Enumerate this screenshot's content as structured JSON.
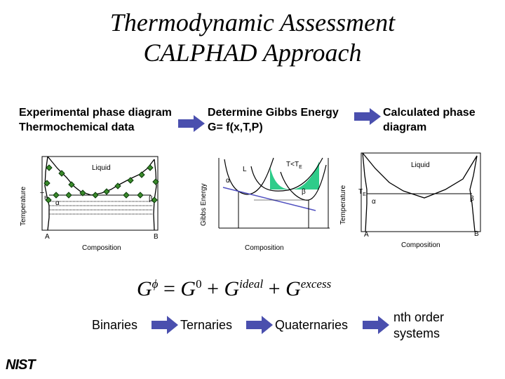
{
  "title_line1": "Thermodynamic Assessment",
  "title_line2": "CALPHAD Approach",
  "headers": {
    "experimental_line1": "Experimental phase diagram",
    "experimental_line2": "Thermochemical data",
    "gibbs_line1": "Determine Gibbs Energy",
    "gibbs_line2": "G= f(x,T,P)",
    "calculated_line1": "Calculated phase",
    "calculated_line2": "diagram"
  },
  "diagram1": {
    "y_label": "Temperature",
    "x_label": "Composition",
    "liquid": "Liquid",
    "te": "T",
    "te_sub": "E",
    "alpha": "α",
    "beta": "β",
    "a": "A",
    "b": "B"
  },
  "diagram2": {
    "y_label": "Gibbs Energy",
    "x_label": "Composition",
    "l": "L",
    "alpha": "α",
    "beta": "β",
    "t_lt_te": "T<T",
    "te_sub": "E",
    "fill_color": "#2ecc8a"
  },
  "diagram3": {
    "y_label": "Temperature",
    "x_label": "Composition",
    "liquid": "Liquid",
    "te": "T",
    "te_sub": "E",
    "alpha": "α",
    "beta": "β",
    "a": "A",
    "b": "B"
  },
  "equation": {
    "g": "G",
    "phi": "ϕ",
    "equals": "=",
    "g0": "G",
    "zero": "0",
    "plus1": "+",
    "g_ideal": "G",
    "ideal": "ideal",
    "plus2": "+",
    "g_excess": "G",
    "excess": "excess"
  },
  "flow": {
    "binaries": "Binaries",
    "ternaries": "Ternaries",
    "quaternaries": "Quaternaries",
    "nth_line1": "nth order",
    "nth_line2": "systems"
  },
  "arrow_color": "#4a4fae",
  "logo": "NIST"
}
